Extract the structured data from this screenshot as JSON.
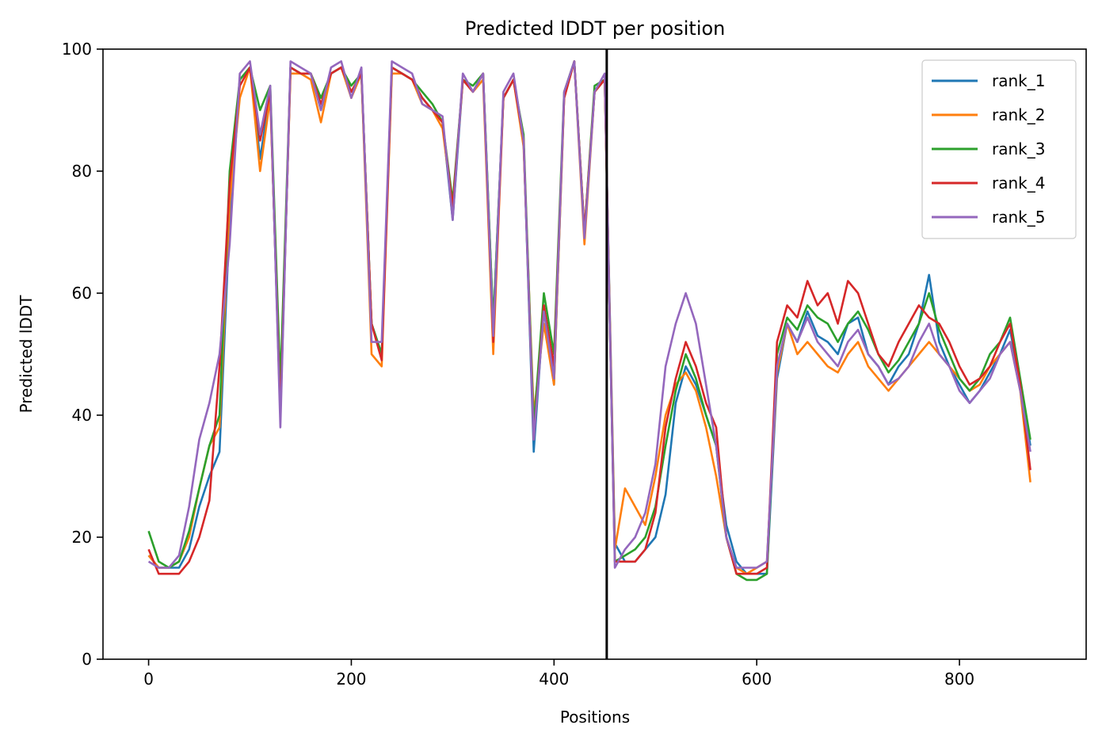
{
  "chart_data": {
    "type": "line",
    "title": "Predicted lDDT per position",
    "xlabel": "Positions",
    "ylabel": "Predicted lDDT",
    "xlim": [
      -45,
      925
    ],
    "ylim": [
      0,
      100
    ],
    "xticks": [
      0,
      200,
      400,
      600,
      800
    ],
    "yticks": [
      0,
      20,
      40,
      60,
      80,
      100
    ],
    "legend_position": "top-right",
    "vline": 452,
    "series_colors": [
      "#1f77b4",
      "#ff7f0e",
      "#2ca02c",
      "#d62728",
      "#9467bd"
    ],
    "x_step": 10,
    "series": [
      {
        "name": "rank_1",
        "values": [
          17,
          15,
          15,
          15,
          18,
          25,
          30,
          34,
          72,
          95,
          97,
          82,
          93,
          40,
          97,
          96,
          96,
          90,
          96,
          97,
          93,
          96,
          55,
          50,
          97,
          96,
          95,
          92,
          90,
          88,
          72,
          95,
          93,
          96,
          55,
          92,
          95,
          85,
          34,
          58,
          45,
          92,
          98,
          70,
          93,
          95,
          19,
          16,
          16,
          18,
          20,
          27,
          42,
          48,
          45,
          40,
          35,
          22,
          16,
          14,
          14,
          14,
          46,
          55,
          52,
          57,
          53,
          52,
          50,
          55,
          56,
          50,
          48,
          45,
          48,
          50,
          55,
          63,
          52,
          48,
          45,
          42,
          44,
          47,
          50,
          54,
          45,
          35
        ]
      },
      {
        "name": "rank_2",
        "values": [
          17,
          15,
          15,
          16,
          20,
          28,
          35,
          38,
          75,
          92,
          97,
          80,
          92,
          42,
          96,
          96,
          95,
          88,
          96,
          97,
          92,
          96,
          50,
          48,
          96,
          96,
          95,
          91,
          90,
          87,
          74,
          95,
          93,
          95,
          50,
          92,
          95,
          84,
          40,
          55,
          45,
          92,
          98,
          68,
          93,
          95,
          18,
          28,
          25,
          22,
          30,
          40,
          45,
          47,
          44,
          38,
          30,
          20,
          15,
          14,
          15,
          16,
          47,
          55,
          50,
          52,
          50,
          48,
          47,
          50,
          52,
          48,
          46,
          44,
          46,
          48,
          50,
          52,
          50,
          48,
          46,
          44,
          45,
          48,
          50,
          52,
          44,
          29
        ]
      },
      {
        "name": "rank_3",
        "values": [
          21,
          16,
          15,
          16,
          21,
          28,
          35,
          40,
          80,
          95,
          97,
          90,
          94,
          45,
          97,
          96,
          96,
          92,
          96,
          97,
          94,
          96,
          55,
          50,
          97,
          96,
          95,
          93,
          91,
          88,
          75,
          95,
          94,
          96,
          55,
          92,
          95,
          86,
          38,
          60,
          50,
          93,
          98,
          70,
          94,
          95,
          16,
          17,
          18,
          20,
          25,
          35,
          44,
          50,
          46,
          40,
          35,
          20,
          14,
          13,
          13,
          14,
          50,
          56,
          54,
          58,
          56,
          55,
          52,
          55,
          57,
          54,
          50,
          47,
          49,
          52,
          55,
          60,
          54,
          50,
          46,
          44,
          46,
          50,
          52,
          56,
          46,
          36
        ]
      },
      {
        "name": "rank_4",
        "values": [
          18,
          14,
          14,
          14,
          16,
          20,
          26,
          48,
          78,
          94,
          97,
          85,
          93,
          40,
          97,
          96,
          96,
          91,
          96,
          97,
          93,
          96,
          55,
          49,
          97,
          96,
          95,
          92,
          90,
          88,
          74,
          95,
          93,
          96,
          52,
          92,
          95,
          85,
          36,
          58,
          48,
          92,
          98,
          70,
          93,
          95,
          16,
          16,
          16,
          18,
          24,
          38,
          46,
          52,
          48,
          42,
          38,
          20,
          14,
          14,
          14,
          15,
          52,
          58,
          56,
          62,
          58,
          60,
          55,
          62,
          60,
          55,
          50,
          48,
          52,
          55,
          58,
          56,
          55,
          52,
          48,
          45,
          46,
          48,
          52,
          55,
          45,
          31
        ]
      },
      {
        "name": "rank_5",
        "values": [
          16,
          15,
          15,
          17,
          25,
          36,
          42,
          50,
          68,
          96,
          98,
          86,
          94,
          38,
          98,
          97,
          96,
          90,
          97,
          98,
          92,
          97,
          52,
          52,
          98,
          97,
          96,
          91,
          90,
          89,
          72,
          96,
          93,
          96,
          53,
          93,
          96,
          85,
          36,
          57,
          46,
          93,
          98,
          69,
          93,
          96,
          15,
          18,
          20,
          24,
          32,
          48,
          55,
          60,
          55,
          45,
          35,
          20,
          15,
          15,
          15,
          16,
          48,
          55,
          52,
          56,
          52,
          50,
          48,
          52,
          54,
          50,
          48,
          45,
          46,
          48,
          52,
          55,
          50,
          48,
          44,
          42,
          44,
          46,
          50,
          52,
          44,
          34
        ]
      }
    ]
  }
}
